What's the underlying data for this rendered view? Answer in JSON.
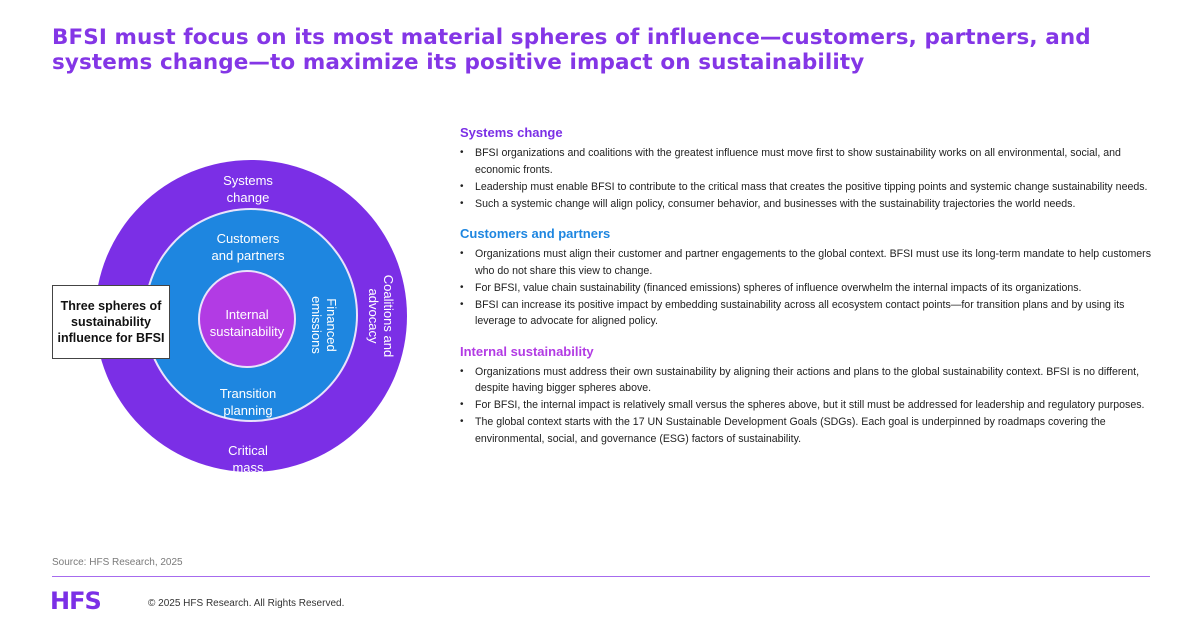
{
  "title": "BFSI must focus on its most material spheres of influence—customers, partners, and systems change—to maximize its positive impact on sustainability",
  "diagram": {
    "outer_top": "Systems\nchange",
    "outer_right": "Coalitions and\nadvocacy",
    "outer_bottom": "Critical\nmass",
    "middle_top": "Customers\nand partners",
    "middle_right": "Financed\nemissions",
    "middle_bottom": "Transition\nplanning",
    "inner": "Internal\nsustainability",
    "callout": "Three spheres of sustainability influence for BFSI",
    "colors": {
      "outer": "#7b2fe6",
      "middle": "#1e86e0",
      "inner": "#b23be4"
    }
  },
  "sections": [
    {
      "heading": "Systems change",
      "color": "#7b2fe6",
      "bullets": [
        "BFSI organizations and coalitions with the greatest influence must move first to show sustainability works on all environmental, social, and economic fronts.",
        "Leadership must enable BFSI to contribute to the critical mass that creates the positive tipping points and systemic change sustainability needs.",
        "Such a systemic change will align policy, consumer behavior, and businesses with the sustainability trajectories the world needs."
      ]
    },
    {
      "heading": "Customers and partners",
      "color": "#1e86e0",
      "bullets": [
        "Organizations must align their customer and partner engagements to the global context. BFSI must use its long-term mandate to help customers who do not share this view to change.",
        "For BFSI, value chain sustainability (financed emissions) spheres of influence overwhelm the internal impacts of its organizations.",
        "BFSI can increase its positive impact by embedding sustainability across all ecosystem contact points—for transition plans and by using its leverage to advocate for aligned policy."
      ]
    },
    {
      "heading": "Internal sustainability",
      "color": "#b23be4",
      "bullets": [
        "Organizations must address their own sustainability by aligning their actions and plans to the global sustainability context. BFSI is no different, despite having bigger spheres above.",
        "For BFSI, the internal impact is relatively small versus the spheres above, but it still must be addressed for leadership and regulatory purposes.",
        "The global context starts with the 17 UN Sustainable Development Goals (SDGs). Each goal is underpinned by roadmaps covering the environmental, social, and governance (ESG) factors of sustainability."
      ]
    }
  ],
  "footer": {
    "source": "Source: HFS Research, 2025",
    "logo": "HFS",
    "copyright": "© 2025 HFS Research. All Rights Reserved."
  }
}
